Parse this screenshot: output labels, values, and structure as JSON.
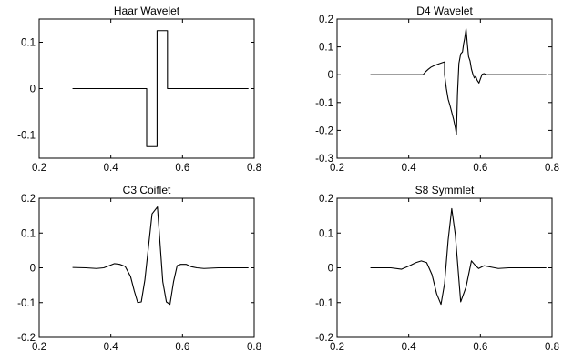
{
  "figure": {
    "background": "#ffffff",
    "line_color": "#000000"
  },
  "chart_data": [
    {
      "type": "line",
      "title": "Haar Wavelet",
      "xlabel": "",
      "ylabel": "",
      "xlim": [
        0.2,
        0.8
      ],
      "ylim": [
        -0.15,
        0.15
      ],
      "xticks": [
        "0.2",
        "0.4",
        "0.6",
        "0.8"
      ],
      "xtick_values": [
        0.2,
        0.4,
        0.6,
        0.8
      ],
      "yticks": [
        "-0.1",
        "0",
        "0.1"
      ],
      "ytick_values": [
        -0.1,
        0,
        0.1
      ],
      "grid": false,
      "series": [
        {
          "x": [
            0.293,
            0.5,
            0.5,
            0.529,
            0.529,
            0.558,
            0.558,
            0.784
          ],
          "y": [
            0,
            0,
            -0.125,
            -0.125,
            0.125,
            0.125,
            0,
            0
          ]
        }
      ]
    },
    {
      "type": "line",
      "title": "D4 Wavelet",
      "xlabel": "",
      "ylabel": "",
      "xlim": [
        0.2,
        0.8
      ],
      "ylim": [
        -0.3,
        0.2
      ],
      "xticks": [
        "0.2",
        "0.4",
        "0.6",
        "0.8"
      ],
      "xtick_values": [
        0.2,
        0.4,
        0.6,
        0.8
      ],
      "yticks": [
        "-0.3",
        "-0.2",
        "-0.1",
        "0",
        "0.1",
        "0.2"
      ],
      "ytick_values": [
        -0.3,
        -0.2,
        -0.1,
        0,
        0.1,
        0.2
      ],
      "grid": false,
      "series": [
        {
          "x": [
            0.293,
            0.44,
            0.448,
            0.455,
            0.462,
            0.47,
            0.478,
            0.486,
            0.493,
            0.5,
            0.5,
            0.505,
            0.51,
            0.515,
            0.52,
            0.525,
            0.53,
            0.533,
            0.536,
            0.54,
            0.545,
            0.55,
            0.553,
            0.556,
            0.56,
            0.563,
            0.567,
            0.571,
            0.575,
            0.579,
            0.583,
            0.587,
            0.591,
            0.596,
            0.6,
            0.605,
            0.61,
            0.617,
            0.625,
            0.784
          ],
          "y": [
            0,
            0,
            0.012,
            0.02,
            0.027,
            0.032,
            0.036,
            0.04,
            0.043,
            0.046,
            0,
            -0.05,
            -0.088,
            -0.11,
            -0.135,
            -0.16,
            -0.19,
            -0.215,
            -0.07,
            0.04,
            0.075,
            0.082,
            0.11,
            0.13,
            0.165,
            0.118,
            0.065,
            0.05,
            0.02,
            0.002,
            -0.012,
            -0.006,
            -0.02,
            -0.03,
            -0.015,
            0.002,
            0.004,
            0,
            0,
            0
          ]
        }
      ]
    },
    {
      "type": "line",
      "title": "C3 Coiflet",
      "xlabel": "",
      "ylabel": "",
      "xlim": [
        0.2,
        0.8
      ],
      "ylim": [
        -0.2,
        0.2
      ],
      "xticks": [
        "0.2",
        "0.4",
        "0.6",
        "0.8"
      ],
      "xtick_values": [
        0.2,
        0.4,
        0.6,
        0.8
      ],
      "yticks": [
        "-0.2",
        "-0.1",
        "0",
        "0.1",
        "0.2"
      ],
      "ytick_values": [
        -0.2,
        -0.1,
        0,
        0.1,
        0.2
      ],
      "grid": false,
      "series": [
        {
          "x": [
            0.293,
            0.33,
            0.36,
            0.38,
            0.395,
            0.41,
            0.425,
            0.44,
            0.455,
            0.465,
            0.475,
            0.485,
            0.495,
            0.505,
            0.515,
            0.53,
            0.545,
            0.555,
            0.565,
            0.575,
            0.585,
            0.595,
            0.61,
            0.625,
            0.64,
            0.66,
            0.7,
            0.784
          ],
          "y": [
            0.001,
            0.0,
            -0.002,
            0.0,
            0.006,
            0.012,
            0.01,
            0.004,
            -0.025,
            -0.065,
            -0.1,
            -0.098,
            -0.035,
            0.06,
            0.155,
            0.175,
            -0.04,
            -0.098,
            -0.105,
            -0.04,
            0.006,
            0.01,
            0.01,
            0.003,
            0.0,
            -0.002,
            0.0,
            0.0
          ]
        }
      ]
    },
    {
      "type": "line",
      "title": "S8 Symmlet",
      "xlabel": "",
      "ylabel": "",
      "xlim": [
        0.2,
        0.8
      ],
      "ylim": [
        -0.2,
        0.2
      ],
      "xticks": [
        "0.2",
        "0.4",
        "0.6",
        "0.8"
      ],
      "xtick_values": [
        0.2,
        0.4,
        0.6,
        0.8
      ],
      "yticks": [
        "-0.2",
        "-0.1",
        "0",
        "0.1",
        "0.2"
      ],
      "ytick_values": [
        -0.2,
        -0.1,
        0,
        0.1,
        0.2
      ],
      "grid": false,
      "series": [
        {
          "x": [
            0.293,
            0.35,
            0.38,
            0.4,
            0.42,
            0.435,
            0.45,
            0.465,
            0.478,
            0.49,
            0.5,
            0.51,
            0.52,
            0.53,
            0.545,
            0.56,
            0.575,
            0.585,
            0.595,
            0.61,
            0.63,
            0.65,
            0.68,
            0.784
          ],
          "y": [
            0.0,
            0.0,
            -0.004,
            0.005,
            0.015,
            0.02,
            0.015,
            -0.02,
            -0.075,
            -0.105,
            -0.045,
            0.08,
            0.17,
            0.095,
            -0.098,
            -0.055,
            0.02,
            0.008,
            -0.002,
            0.006,
            0.002,
            -0.002,
            0.0,
            0.0
          ]
        }
      ]
    }
  ]
}
